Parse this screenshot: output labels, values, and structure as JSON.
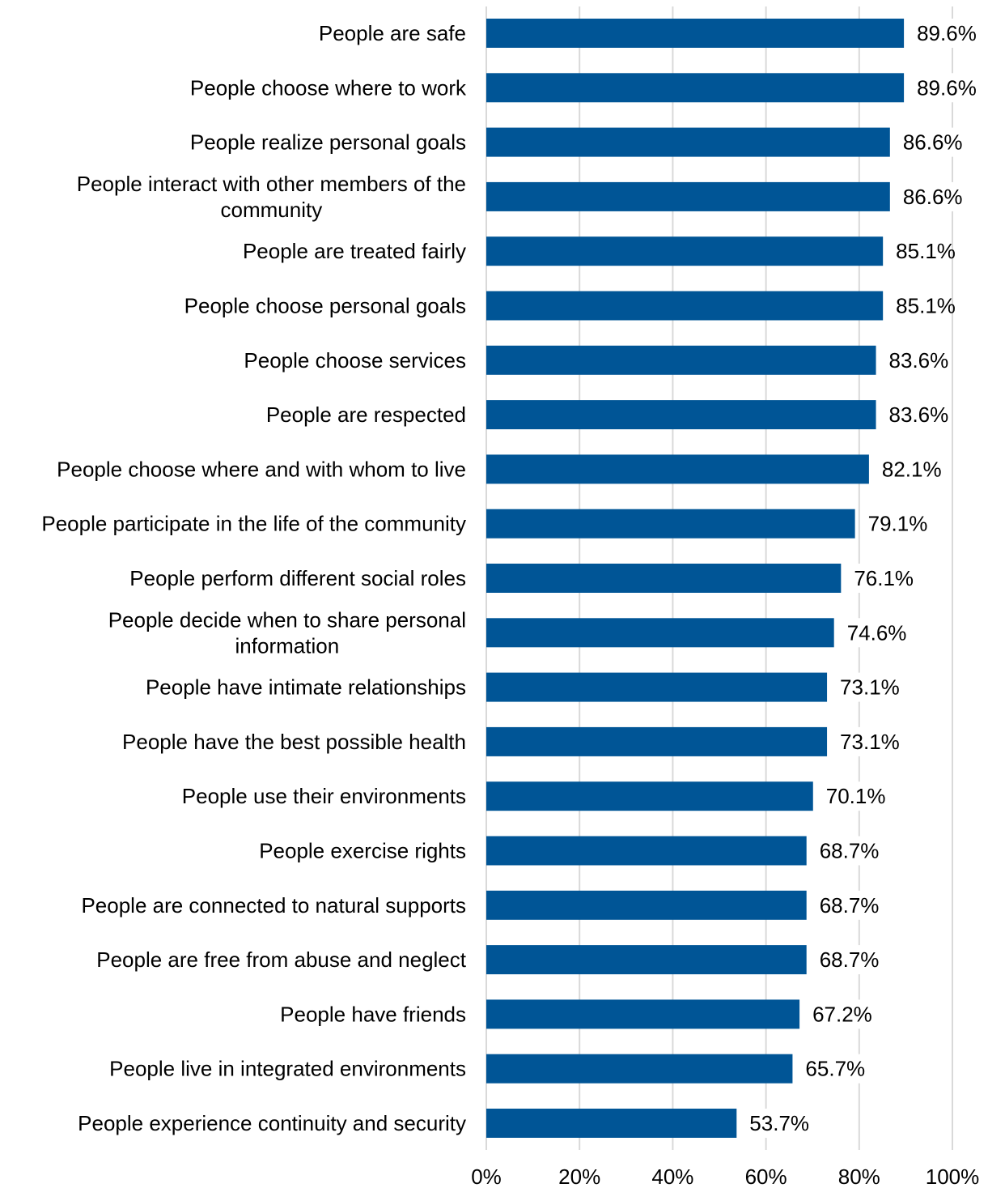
{
  "chart_data": {
    "type": "bar",
    "orientation": "horizontal",
    "title": "",
    "xlabel": "",
    "ylabel": "",
    "xlim": [
      0,
      100
    ],
    "ticks": [
      0,
      20,
      40,
      60,
      80,
      100
    ],
    "tick_labels": [
      "0%",
      "20%",
      "40%",
      "60%",
      "80%",
      "100%"
    ],
    "grid": true,
    "legend": "none",
    "bar_color": "#005596",
    "categories": [
      [
        "People are safe"
      ],
      [
        "People choose where to work"
      ],
      [
        "People realize personal goals"
      ],
      [
        "People interact with other members of the",
        "community"
      ],
      [
        "People are treated fairly"
      ],
      [
        "People choose personal goals"
      ],
      [
        "People choose services"
      ],
      [
        "People are respected"
      ],
      [
        "People choose where and with whom to live"
      ],
      [
        "People participate in the life of the community"
      ],
      [
        "People perform different social roles"
      ],
      [
        "People decide when to share personal",
        "information"
      ],
      [
        "People have intimate relationships"
      ],
      [
        "People have the best possible health"
      ],
      [
        "People use their environments"
      ],
      [
        "People exercise rights"
      ],
      [
        "People are connected to natural supports"
      ],
      [
        "People are free from abuse and neglect"
      ],
      [
        "People have friends"
      ],
      [
        "People live in integrated environments"
      ],
      [
        "People experience continuity and security"
      ]
    ],
    "values": [
      89.6,
      89.6,
      86.6,
      86.6,
      85.1,
      85.1,
      83.6,
      83.6,
      82.1,
      79.1,
      76.1,
      74.6,
      73.1,
      73.1,
      70.1,
      68.7,
      68.7,
      68.7,
      67.2,
      65.7,
      53.7
    ],
    "value_labels": [
      "89.6%",
      "89.6%",
      "86.6%",
      "86.6%",
      "85.1%",
      "85.1%",
      "83.6%",
      "83.6%",
      "82.1%",
      "79.1%",
      "76.1%",
      "74.6%",
      "73.1%",
      "73.1%",
      "70.1%",
      "68.7%",
      "68.7%",
      "68.7%",
      "67.2%",
      "65.7%",
      "53.7%"
    ]
  }
}
